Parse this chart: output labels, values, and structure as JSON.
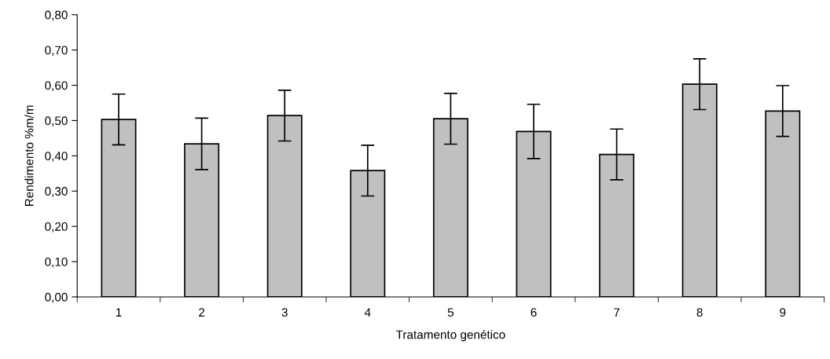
{
  "chart_data": {
    "type": "bar",
    "xlabel": "Tratamento genético",
    "ylabel": "Rendimento %m/m",
    "categories": [
      "1",
      "2",
      "3",
      "4",
      "5",
      "6",
      "7",
      "8",
      "9"
    ],
    "values": [
      0.503,
      0.434,
      0.514,
      0.358,
      0.505,
      0.469,
      0.404,
      0.603,
      0.527
    ],
    "errors": [
      0.072,
      0.073,
      0.072,
      0.072,
      0.072,
      0.077,
      0.072,
      0.072,
      0.072
    ],
    "color": "#c0c0c0",
    "ylim": [
      0,
      0.8
    ],
    "yticks": [
      {
        "value": 0,
        "label": "0,00"
      },
      {
        "value": 0.1,
        "label": "0,10"
      },
      {
        "value": 0.2,
        "label": "0,20"
      },
      {
        "value": 0.3,
        "label": "0,30"
      },
      {
        "value": 0.4,
        "label": "0,40"
      },
      {
        "value": 0.5,
        "label": "0,50"
      },
      {
        "value": 0.6,
        "label": "0,60"
      },
      {
        "value": 0.7,
        "label": "0,70"
      },
      {
        "value": 0.8,
        "label": "0,80"
      }
    ],
    "grid": false
  }
}
